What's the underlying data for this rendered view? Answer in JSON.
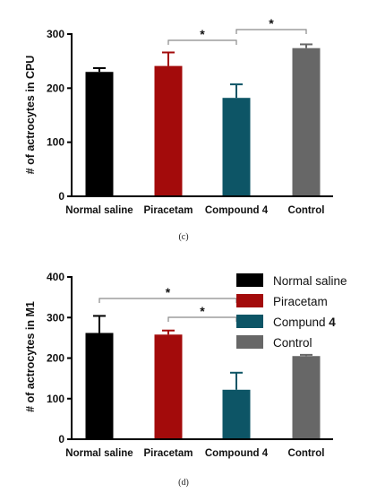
{
  "chart_data": [
    {
      "type": "bar",
      "panel_label": "(c)",
      "ylabel": "# of actrocytes in CPU",
      "categories": [
        "Normal saline",
        "Piracetam",
        "Compound 4",
        "Control"
      ],
      "values": [
        230,
        241,
        182,
        274
      ],
      "errors": [
        7,
        25,
        25,
        7
      ],
      "colors": [
        "#000000",
        "#a30b0b",
        "#0d5566",
        "#676767"
      ],
      "ylim": [
        0,
        300
      ],
      "yticks": [
        0,
        100,
        200,
        300
      ],
      "significance": [
        {
          "from": 1,
          "to": 2,
          "label": "*"
        },
        {
          "from": 2,
          "to": 3,
          "label": "*"
        }
      ]
    },
    {
      "type": "bar",
      "panel_label": "(d)",
      "ylabel": "# of actrocytes in M1",
      "categories": [
        "Normal saline",
        "Piracetam",
        "Compound 4",
        "Control"
      ],
      "values": [
        262,
        258,
        122,
        205
      ],
      "errors": [
        42,
        10,
        42,
        3
      ],
      "colors": [
        "#000000",
        "#a30b0b",
        "#0d5566",
        "#676767"
      ],
      "ylim": [
        0,
        400
      ],
      "yticks": [
        0,
        100,
        200,
        300,
        400
      ],
      "significance": [
        {
          "from": 0,
          "to": 2,
          "label": "*"
        },
        {
          "from": 1,
          "to": 2,
          "label": "*"
        }
      ],
      "legend": {
        "position": "top-right",
        "entries": [
          {
            "label": "Normal saline",
            "color": "#000000"
          },
          {
            "label": "Piracetam",
            "color": "#a30b0b"
          },
          {
            "label": "Compund",
            "label_bold_suffix": "4",
            "color": "#0d5566"
          },
          {
            "label": "Control",
            "color": "#676767"
          }
        ]
      }
    }
  ]
}
